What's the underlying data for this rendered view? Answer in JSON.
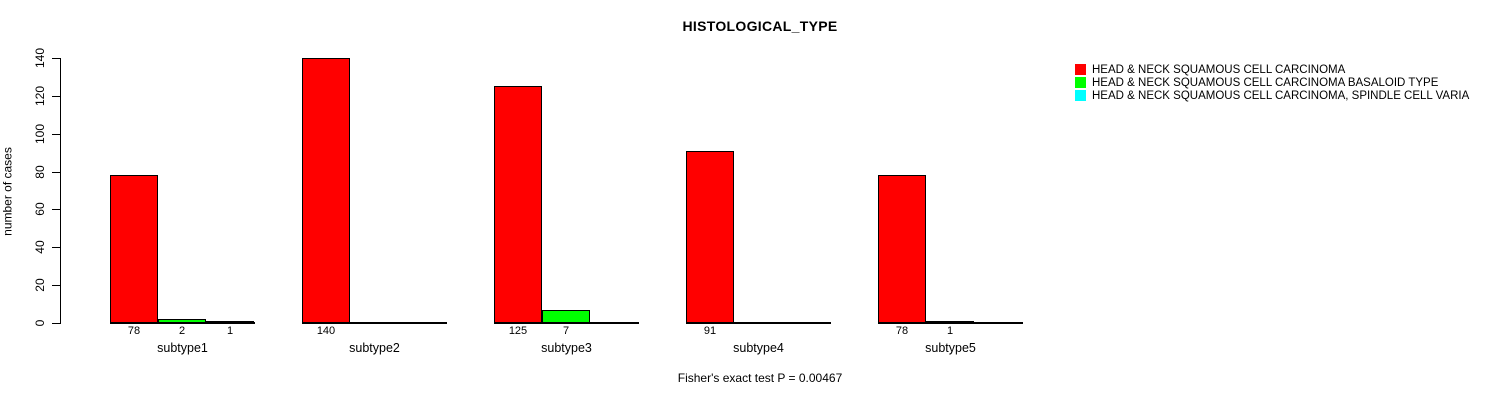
{
  "page": {
    "title": "HISTOLOGICAL_TYPE",
    "footer": "Fisher's exact test P = 0.00467"
  },
  "chart_data": {
    "type": "bar",
    "title": "HISTOLOGICAL_TYPE",
    "xlabel": "",
    "ylabel": "number of cases",
    "ylim": [
      0,
      140
    ],
    "yticks": [
      0,
      20,
      40,
      60,
      80,
      100,
      120,
      140
    ],
    "grid": false,
    "legend_position": "top-right",
    "bar_value_labels": true,
    "categories": [
      "subtype1",
      "subtype2",
      "subtype3",
      "subtype4",
      "subtype5"
    ],
    "series": [
      {
        "name": "HEAD & NECK SQUAMOUS CELL CARCINOMA",
        "color": "#FF0000",
        "values": [
          78,
          140,
          125,
          91,
          78
        ]
      },
      {
        "name": "HEAD & NECK SQUAMOUS CELL CARCINOMA BASALOID TYPE",
        "color": "#00FF00",
        "values": [
          2,
          null,
          7,
          null,
          1
        ]
      },
      {
        "name": "HEAD & NECK SQUAMOUS CELL CARCINOMA, SPINDLE CELL VARIA",
        "color": "#00FFFF",
        "values": [
          1,
          null,
          null,
          null,
          null
        ]
      }
    ],
    "annotation": "Fisher's exact test P = 0.00467"
  }
}
